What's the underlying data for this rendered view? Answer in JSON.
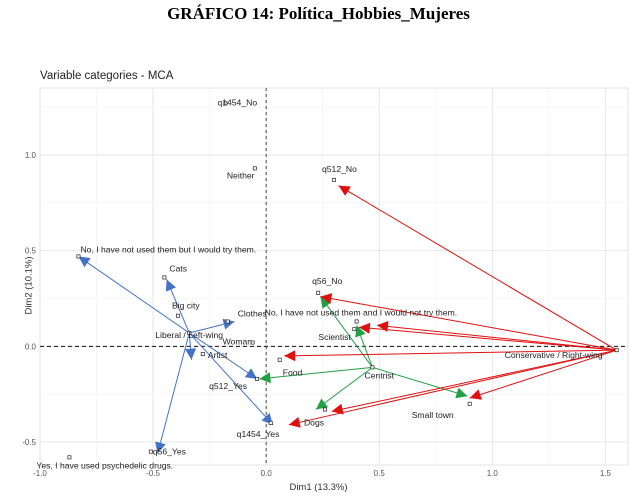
{
  "document_title": "GRÁFICO 14: Política_Hobbies_Mujeres",
  "chart_data": {
    "type": "scatter",
    "title": "Variable categories - MCA",
    "xlabel": "Dim1 (13.3%)",
    "ylabel": "Dim2 (10.1%)",
    "xlim": [
      -1.0,
      1.6
    ],
    "ylim": [
      -0.62,
      1.35
    ],
    "x_ticks": [
      -1.0,
      -0.5,
      0.0,
      0.5,
      1.0,
      1.5
    ],
    "x_tick_labels": [
      "-1.0",
      "-0.5",
      "0.0",
      "0.5",
      "1.0",
      "1.5"
    ],
    "y_ticks": [
      -0.5,
      0.0,
      0.5,
      1.0
    ],
    "y_tick_labels": [
      "-0.5",
      "0.0",
      "0.5",
      "1.0"
    ],
    "grid": true,
    "points": [
      {
        "label": "q1454_No",
        "x": -0.18,
        "y": 1.27
      },
      {
        "label": "Neither",
        "x": -0.05,
        "y": 0.93
      },
      {
        "label": "q512_No",
        "x": 0.3,
        "y": 0.87
      },
      {
        "label": "No, I have not used them but I would try them.",
        "x": -0.83,
        "y": 0.47
      },
      {
        "label": "Cats",
        "x": -0.45,
        "y": 0.36
      },
      {
        "label": "Big city",
        "x": -0.39,
        "y": 0.16
      },
      {
        "label": "Clothes",
        "x": -0.17,
        "y": 0.13
      },
      {
        "label": "Liberal / Left-wing",
        "x": -0.34,
        "y": 0.07
      },
      {
        "label": "Woman",
        "x": -0.06,
        "y": 0.02
      },
      {
        "label": "Artist",
        "x": -0.28,
        "y": -0.04
      },
      {
        "label": "q56_No",
        "x": 0.23,
        "y": 0.28
      },
      {
        "label": "No, I have not used them and I would not try them.",
        "x": 0.4,
        "y": 0.13
      },
      {
        "label": "Scientist",
        "x": 0.39,
        "y": 0.09
      },
      {
        "label": "Conservative / Right-wing",
        "x": 1.55,
        "y": -0.02
      },
      {
        "label": "Food",
        "x": 0.06,
        "y": -0.07
      },
      {
        "label": "Centrist",
        "x": 0.47,
        "y": -0.11
      },
      {
        "label": "q512_Yes",
        "x": -0.04,
        "y": -0.17
      },
      {
        "label": "Small town",
        "x": 0.9,
        "y": -0.3
      },
      {
        "label": "Dogs",
        "x": 0.26,
        "y": -0.33
      },
      {
        "label": "q1454_Yes",
        "x": 0.02,
        "y": -0.4
      },
      {
        "label": "q56_Yes",
        "x": -0.51,
        "y": -0.55
      },
      {
        "label": "Yes, I have used psychedelic drugs.",
        "x": -0.87,
        "y": -0.58
      }
    ],
    "arrows": [
      {
        "color": "#4472C4",
        "from": "Liberal / Left-wing",
        "to": [
          -0.83,
          0.47
        ]
      },
      {
        "color": "#4472C4",
        "from": "Liberal / Left-wing",
        "to": [
          -0.44,
          0.35
        ]
      },
      {
        "color": "#4472C4",
        "from": "Liberal / Left-wing",
        "to": [
          -0.14,
          0.13
        ]
      },
      {
        "color": "#4472C4",
        "from": "Liberal / Left-wing",
        "to": [
          -0.33,
          -0.07
        ]
      },
      {
        "color": "#4472C4",
        "from": "Liberal / Left-wing",
        "to": [
          -0.04,
          -0.17
        ]
      },
      {
        "color": "#4472C4",
        "from": "Liberal / Left-wing",
        "to": [
          0.03,
          -0.41
        ]
      },
      {
        "color": "#4472C4",
        "from": "Liberal / Left-wing",
        "to": [
          -0.48,
          -0.56
        ]
      },
      {
        "color": "#22A045",
        "from": "Centrist",
        "to": [
          0.24,
          0.26
        ]
      },
      {
        "color": "#22A045",
        "from": "Centrist",
        "to": [
          0.4,
          0.11
        ]
      },
      {
        "color": "#22A045",
        "from": "Centrist",
        "to": [
          -0.03,
          -0.17
        ]
      },
      {
        "color": "#22A045",
        "from": "Centrist",
        "to": [
          0.89,
          -0.26
        ]
      },
      {
        "color": "#22A045",
        "from": "Centrist",
        "to": [
          0.22,
          -0.33
        ]
      },
      {
        "color": "#E01010",
        "from": "Conservative / Right-wing",
        "to": [
          0.32,
          0.84
        ]
      },
      {
        "color": "#E01010",
        "from": "Conservative / Right-wing",
        "to": [
          0.24,
          0.26
        ]
      },
      {
        "color": "#E01010",
        "from": "Conservative / Right-wing",
        "to": [
          0.41,
          0.1
        ]
      },
      {
        "color": "#E01010",
        "from": "Conservative / Right-wing",
        "to": [
          0.49,
          0.11
        ]
      },
      {
        "color": "#E01010",
        "from": "Conservative / Right-wing",
        "to": [
          0.08,
          -0.05
        ]
      },
      {
        "color": "#E01010",
        "from": "Conservative / Right-wing",
        "to": [
          0.9,
          -0.27
        ]
      },
      {
        "color": "#E01010",
        "from": "Conservative / Right-wing",
        "to": [
          0.29,
          -0.34
        ]
      },
      {
        "color": "#E01010",
        "from": "Conservative / Right-wing",
        "to": [
          0.1,
          -0.41
        ]
      }
    ]
  }
}
